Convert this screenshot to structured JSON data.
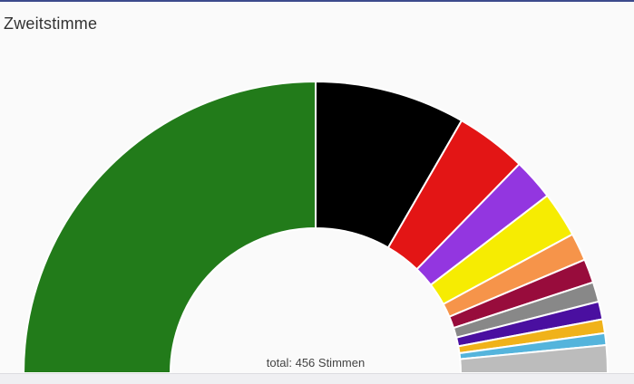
{
  "title": "Zweitstimme",
  "total_label": "total: 456 Stimmen",
  "chart_data": {
    "type": "pie",
    "subtype": "half-donut",
    "title": "Zweitstimme",
    "total": 456,
    "slices": [
      {
        "value": 228,
        "color": "#227b1a"
      },
      {
        "value": 76,
        "color": "#000000"
      },
      {
        "value": 36,
        "color": "#e31515"
      },
      {
        "value": 21,
        "color": "#9336e0"
      },
      {
        "value": 23,
        "color": "#f6ec02"
      },
      {
        "value": 14,
        "color": "#f6944a"
      },
      {
        "value": 12,
        "color": "#980c3c"
      },
      {
        "value": 10,
        "color": "#888888"
      },
      {
        "value": 9,
        "color": "#4a0fa0"
      },
      {
        "value": 7,
        "color": "#f0b21a"
      },
      {
        "value": 6,
        "color": "#54b4dc"
      },
      {
        "value": 14,
        "color": "#bcbcbc"
      }
    ]
  }
}
